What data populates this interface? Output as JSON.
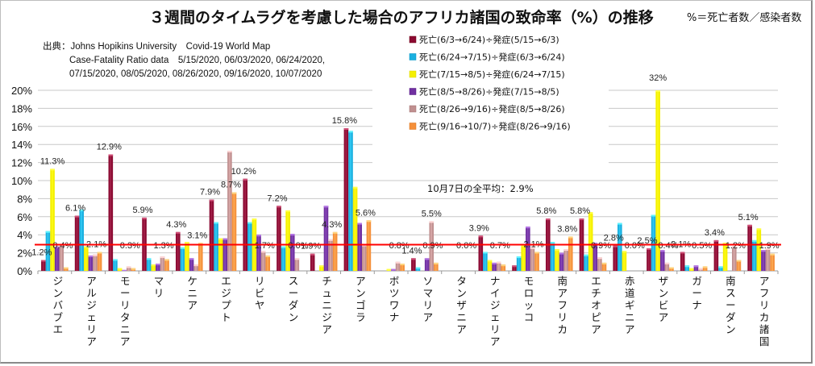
{
  "chart_data": {
    "type": "bar",
    "title": "３週間のタイムラグを考慮した場合のアフリカ諸国の致命率（%）の推移",
    "subtitle": "%＝死亡者数／感染者数",
    "source_lines": [
      "出典：Johns Hopikins University　Covid-19 World Map",
      "Case-Fatality Ratio data　5/15/2020, 06/03/2020, 06/24/2020,",
      "07/15/2020, 08/05/2020, 08/26/2020, 09/16/2020, 10/07/2020"
    ],
    "ylabel": "",
    "xlabel": "",
    "ylim": [
      0,
      20
    ],
    "y_ticks": [
      "0%",
      "2%",
      "4%",
      "6%",
      "8%",
      "10%",
      "12%",
      "14%",
      "16%",
      "18%",
      "20%"
    ],
    "grid": true,
    "legend_position": "top-center",
    "categories": [
      "ジンバブエ",
      "アルジェリア",
      "モーリタニア",
      "マリ",
      "ケニア",
      "エジプト",
      "リビヤ",
      "スーダン",
      "チュニジア",
      "アンゴラ",
      "ボツワナ",
      "ソマリア",
      "タンザニア",
      "ナイジェリア",
      "モロッコ",
      "南アフリカ",
      "エチオピア",
      "赤道ギニア",
      "ザンビア",
      "ガーナ",
      "南スーダン",
      "アフリカ諸国"
    ],
    "series": [
      {
        "name": "死亡(6/3→6/24)÷発症(5/15→6/3)",
        "color": "#8b0a32",
        "values": [
          1.2,
          6.1,
          12.9,
          5.9,
          4.3,
          7.9,
          10.2,
          7.2,
          1.9,
          15.8,
          0.0,
          1.4,
          0.0,
          3.9,
          0.6,
          5.8,
          5.8,
          2.8,
          2.5,
          2.1,
          3.4,
          5.1
        ]
      },
      {
        "name": "死亡(6/24→7/15)÷発症(6/3→6/24)",
        "color": "#1ab0e0",
        "values": [
          4.4,
          6.8,
          1.3,
          1.4,
          2.6,
          5.4,
          5.4,
          2.7,
          0.0,
          15.5,
          0.0,
          0.4,
          0.0,
          2.1,
          1.6,
          3.2,
          1.8,
          5.3,
          6.2,
          0.6,
          0.5,
          3.4
        ]
      },
      {
        "name": "死亡(7/15→8/5)÷発症(6/24→7/15)",
        "color": "#f5f000",
        "values": [
          11.3,
          2.7,
          0.3,
          0.7,
          3.2,
          3.6,
          5.8,
          6.7,
          0.6,
          9.3,
          0.2,
          0.0,
          0.0,
          1.2,
          2.9,
          2.4,
          6.5,
          2.2,
          32.0,
          0.3,
          3.1,
          4.7
        ]
      },
      {
        "name": "死亡(8/5→8/26)÷発症(7/15→8/5)",
        "color": "#7030a0",
        "values": [
          2.7,
          1.7,
          0.1,
          0.8,
          1.4,
          3.6,
          4.0,
          4.1,
          7.2,
          5.3,
          0.2,
          1.4,
          0.0,
          0.9,
          4.9,
          2.0,
          3.1,
          0.0,
          2.3,
          0.6,
          0.0,
          2.3
        ]
      },
      {
        "name": "死亡(8/26→9/16)÷発症(8/5→8/26)",
        "color": "#c09090",
        "values": [
          2.9,
          1.8,
          0.5,
          1.6,
          0.7,
          13.3,
          2.2,
          1.4,
          3.5,
          2.9,
          1.0,
          5.5,
          0.0,
          1.0,
          2.6,
          2.4,
          1.5,
          0.0,
          0.9,
          0.3,
          2.7,
          2.5
        ]
      },
      {
        "name": "死亡(9/16→10/7)÷発症(8/26→9/16)",
        "color": "#f5903a",
        "values": [
          0.4,
          2.1,
          0.3,
          1.3,
          3.1,
          8.7,
          1.7,
          0.0,
          4.3,
          5.6,
          0.8,
          0.9,
          0.0,
          0.7,
          2.1,
          3.8,
          0.9,
          0.0,
          0.4,
          0.5,
          1.2,
          1.9
        ]
      }
    ],
    "data_labels": [
      {
        "category": "ジンバブエ",
        "series": 0,
        "text": "1.2%"
      },
      {
        "category": "ジンバブエ",
        "series": 2,
        "text": "11.3%"
      },
      {
        "category": "ジンバブエ",
        "series": 5,
        "text": "0.4%"
      },
      {
        "category": "アルジェリア",
        "series": 0,
        "text": "6.1%"
      },
      {
        "category": "アルジェリア",
        "series": 5,
        "text": "2.1%"
      },
      {
        "category": "モーリタニア",
        "series": 0,
        "text": "12.9%"
      },
      {
        "category": "モーリタニア",
        "series": 5,
        "text": "0.3%"
      },
      {
        "category": "マリ",
        "series": 0,
        "text": "5.9%"
      },
      {
        "category": "マリ",
        "series": 5,
        "text": "1.3%"
      },
      {
        "category": "ケニア",
        "series": 0,
        "text": "4.3%"
      },
      {
        "category": "ケニア",
        "series": 5,
        "text": "3.1%"
      },
      {
        "category": "エジプト",
        "series": 0,
        "text": "7.9%"
      },
      {
        "category": "エジプト",
        "series": 5,
        "text": "8.7%"
      },
      {
        "category": "リビヤ",
        "series": 0,
        "text": "10.2%"
      },
      {
        "category": "リビヤ",
        "series": 5,
        "text": "1.7%"
      },
      {
        "category": "スーダン",
        "series": 0,
        "text": "7.2%"
      },
      {
        "category": "スーダン",
        "series": 5,
        "text": "0.0%"
      },
      {
        "category": "チュニジア",
        "series": 0,
        "text": "1.9%"
      },
      {
        "category": "チュニジア",
        "series": 5,
        "text": "4.3%"
      },
      {
        "category": "アンゴラ",
        "series": 0,
        "text": "15.8%"
      },
      {
        "category": "アンゴラ",
        "series": 5,
        "text": "5.6%"
      },
      {
        "category": "ボツワナ",
        "series": 5,
        "text": "0.8%"
      },
      {
        "category": "ソマリア",
        "series": 0,
        "text": "1.4%"
      },
      {
        "category": "ソマリア",
        "series": 4,
        "text": "5.5%"
      },
      {
        "category": "ソマリア",
        "series": 5,
        "text": "0.9%"
      },
      {
        "category": "タンザニア",
        "series": 5,
        "text": "0.0%"
      },
      {
        "category": "ナイジェリア",
        "series": 0,
        "text": "3.9%"
      },
      {
        "category": "ナイジェリア",
        "series": 5,
        "text": "0.7%"
      },
      {
        "category": "モロッコ",
        "series": 5,
        "text": "2.1%"
      },
      {
        "category": "南アフリカ",
        "series": 0,
        "text": "5.8%"
      },
      {
        "category": "南アフリカ",
        "series": 5,
        "text": "3.8%"
      },
      {
        "category": "エチオピア",
        "series": 0,
        "text": "5.8%"
      },
      {
        "category": "エチオピア",
        "series": 5,
        "text": "0.9%"
      },
      {
        "category": "赤道ギニア",
        "series": 0,
        "text": "2.8%"
      },
      {
        "category": "赤道ギニア",
        "series": 5,
        "text": "0.0%"
      },
      {
        "category": "ザンビア",
        "series": 0,
        "text": "2.5%"
      },
      {
        "category": "ザンビア",
        "series": 2,
        "text": "32%"
      },
      {
        "category": "ザンビア",
        "series": 5,
        "text": "0.4%"
      },
      {
        "category": "ガーナ",
        "series": 0,
        "text": "2.1%"
      },
      {
        "category": "ガーナ",
        "series": 5,
        "text": "0.5%"
      },
      {
        "category": "南スーダン",
        "series": 0,
        "text": "3.4%"
      },
      {
        "category": "南スーダン",
        "series": 5,
        "text": "1.2%"
      },
      {
        "category": "アフリカ諸国",
        "series": 0,
        "text": "5.1%"
      },
      {
        "category": "アフリカ諸国",
        "series": 5,
        "text": "1.9%"
      }
    ],
    "reference_line": {
      "value": 2.9,
      "color": "#ff0000",
      "label": "10月7日の全平均：2.9%"
    }
  }
}
